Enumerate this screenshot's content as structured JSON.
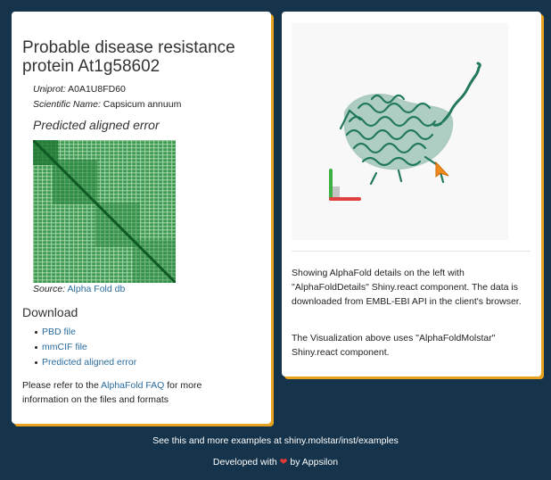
{
  "protein": {
    "title": "Probable disease resistance protein At1g58602",
    "uniprot_label": "Uniprot:",
    "uniprot_value": "A0A1U8FD60",
    "species_label": "Scientific Name:",
    "species_value": "Capsicum annuum"
  },
  "pae": {
    "heading": "Predicted aligned error",
    "source_label": "Source:",
    "source_link": "Alpha Fold db",
    "colors": {
      "low": "#1e7a34",
      "high": "#ffffff"
    }
  },
  "download": {
    "heading": "Download",
    "items": [
      "PBD file",
      "mmCIF file",
      "Predicted aligned error"
    ],
    "faq_prefix": "Please refer to the ",
    "faq_link": "AlphaFold FAQ",
    "faq_suffix": " for more information on the files and formats"
  },
  "viewer": {
    "structure_color": "#21785a",
    "cursor_color": "#f08a1c",
    "axes_colors": {
      "x": "#e04040",
      "y": "#3cb043",
      "z": "#999999"
    }
  },
  "description": {
    "p1": "Showing AlphaFold details on the left with \"AlphaFoldDetails\" Shiny.react component. The data is downloaded from EMBL-EBI API in the client's browser.",
    "p2": "The Visualization above uses \"AlphaFoldMolstar\" Shiny.react component."
  },
  "footer": {
    "examples_text": "See this and more examples at shiny.molstar/inst/examples",
    "developed_prefix": "Developed with",
    "developed_by": "by Appsilon"
  }
}
